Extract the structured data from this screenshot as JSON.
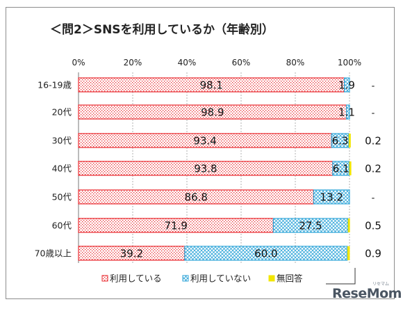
{
  "chart_data": {
    "type": "bar",
    "orientation": "horizontal",
    "stacked": true,
    "title": "＜問2＞SNSを利用しているか（年齢別）",
    "categories": [
      "16-19歳",
      "20代",
      "30代",
      "40代",
      "50代",
      "60代",
      "70歳以上"
    ],
    "series": [
      {
        "name": "利用している",
        "values": [
          98.1,
          98.9,
          93.4,
          93.8,
          86.8,
          71.9,
          39.2
        ],
        "color": "#e8262b",
        "pattern": "dots"
      },
      {
        "name": "利用していない",
        "values": [
          1.9,
          1.1,
          6.3,
          6.1,
          13.2,
          27.5,
          60.0
        ],
        "color": "#31a6d9",
        "pattern": "crosshatch"
      },
      {
        "name": "無回答",
        "values": [
          0,
          0,
          0.2,
          0.2,
          0,
          0.5,
          0.9
        ],
        "color": "#f2e600",
        "pattern": "solid"
      }
    ],
    "segment_labels": {
      "used": [
        "98.1",
        "98.9",
        "93.4",
        "93.8",
        "86.8",
        "71.9",
        "39.2"
      ],
      "not_used": [
        "1.9",
        "1.1",
        "6.3",
        "6.1",
        "13.2",
        "27.5",
        "60.0"
      ],
      "no_answer": [
        "-",
        "-",
        "0.2",
        "0.2",
        "-",
        "0.5",
        "0.9"
      ]
    },
    "x_ticks": [
      "0%",
      "20%",
      "40%",
      "60%",
      "80%",
      "100%"
    ],
    "xlim": [
      0,
      100
    ],
    "legend_position": "bottom"
  },
  "brand": {
    "logo_text": "ReseMom",
    "logo_sub": "リセマム"
  }
}
